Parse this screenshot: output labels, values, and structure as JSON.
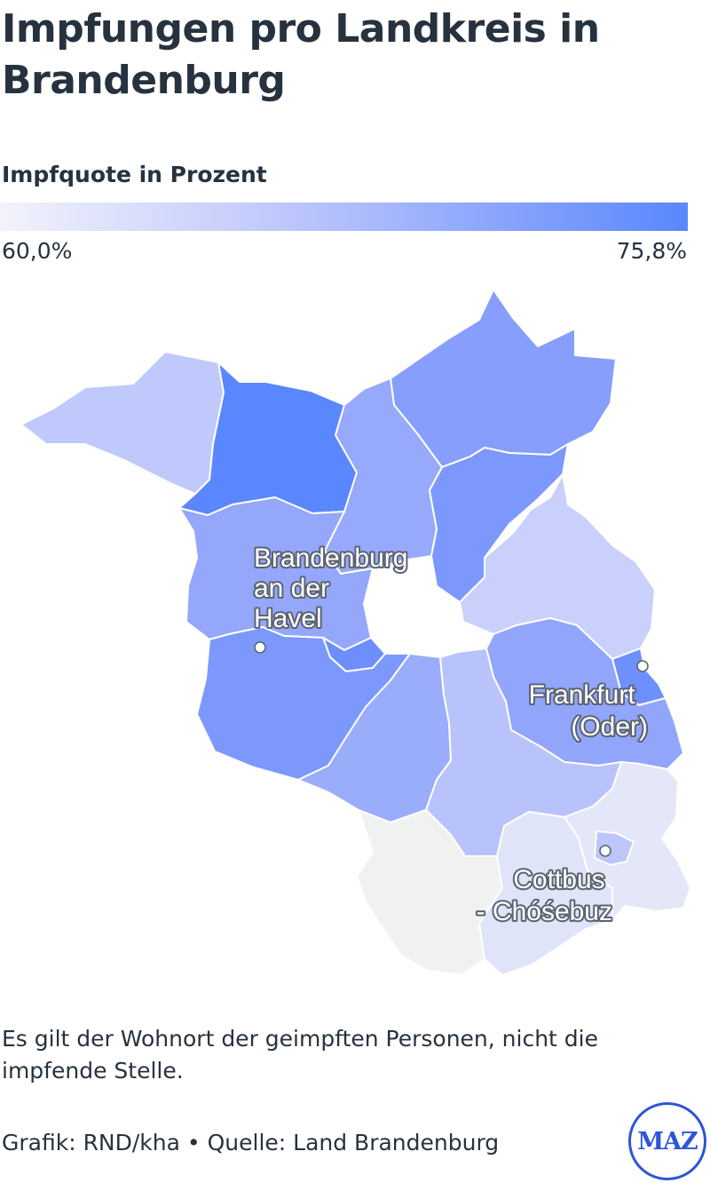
{
  "header": {
    "title": "Impfungen pro Landkreis in Brandenburg"
  },
  "legend": {
    "title": "Impfquote in Prozent",
    "min_label": "60,0%",
    "max_label": "75,8%",
    "color_min": "#f2f3fb",
    "color_max": "#5a87fd"
  },
  "map": {
    "cities": [
      {
        "id": "brandenburg",
        "lines": [
          "Brandenburg",
          "an der",
          "Havel"
        ]
      },
      {
        "id": "frankfurt",
        "lines": [
          "Frankfurt",
          "(Oder)"
        ]
      },
      {
        "id": "cottbus",
        "lines": [
          "Cottbus",
          "- Chóśebuz"
        ]
      }
    ],
    "colors": {
      "prignitz": "#c0c9fb",
      "ostprignitz_ruppin": "#5a87fd",
      "oberhavel": "#96a9fb",
      "uckermark": "#879efc",
      "barnim": "#7d98fd",
      "havelland": "#94a7fb",
      "potsdam": "#6d8ffd",
      "maerkisch_oderland": "#c9d0fb",
      "frankfurt_oder": "#6e90fd",
      "potsdam_mittelmark": "#7d98fd",
      "teltow_flaeming": "#9aadfb",
      "dahme_spreewald": "#b9c3fb",
      "oder_spree": "#91a5fb",
      "elbe_elster": "#f0f2f1",
      "oberspreewald_lausitz": "#dfe4f8",
      "spree_neisse": "#e3e7f7",
      "cottbus": "#bcc6fb"
    }
  },
  "footer": {
    "note": "Es gilt der Wohnort der geimpften Personen, nicht die impfende Stelle.",
    "credits": "Grafik: RND/kha • Quelle: Land Brandenburg",
    "logo_text": "MAZ"
  }
}
